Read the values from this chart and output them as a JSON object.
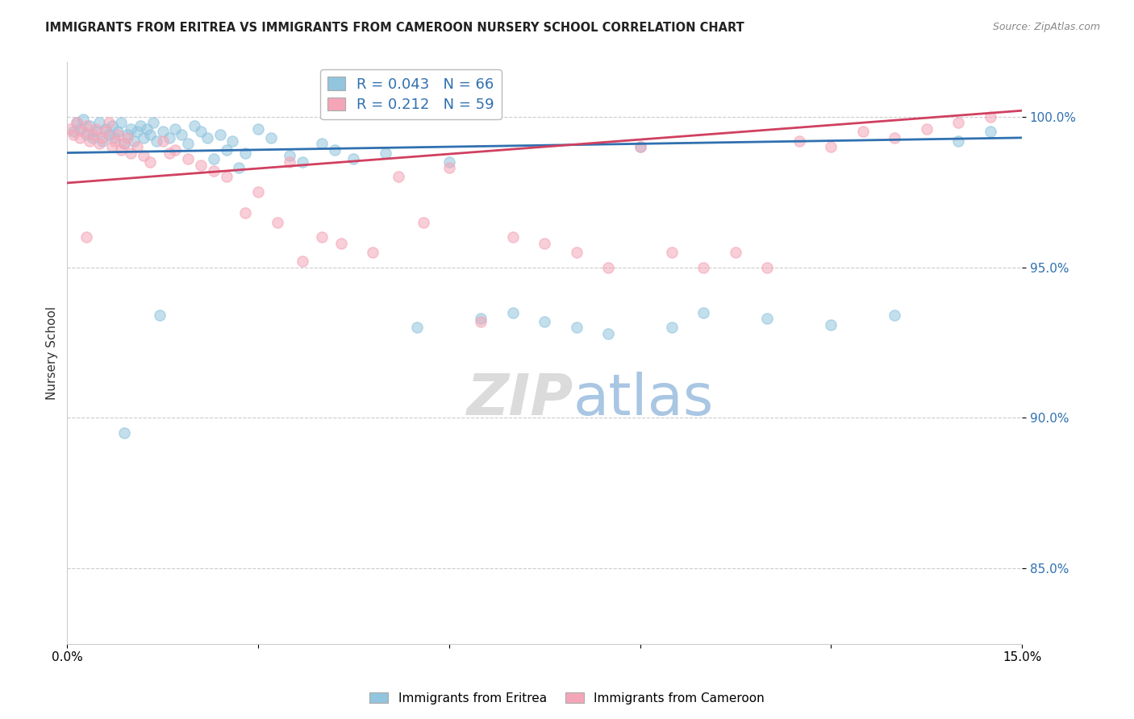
{
  "title": "IMMIGRANTS FROM ERITREA VS IMMIGRANTS FROM CAMEROON NURSERY SCHOOL CORRELATION CHART",
  "source": "Source: ZipAtlas.com",
  "ylabel": "Nursery School",
  "xlim": [
    0.0,
    15.0
  ],
  "ylim": [
    82.5,
    101.8
  ],
  "yticks": [
    85.0,
    90.0,
    95.0,
    100.0
  ],
  "xtick_positions": [
    0.0,
    3.0,
    6.0,
    9.0,
    12.0,
    15.0
  ],
  "xtick_labels": [
    "0.0%",
    "",
    "",
    "",
    "",
    "15.0%"
  ],
  "ytick_labels": [
    "85.0%",
    "90.0%",
    "95.0%",
    "100.0%"
  ],
  "legend_eritrea": "Immigrants from Eritrea",
  "legend_cameroon": "Immigrants from Cameroon",
  "R_eritrea": 0.043,
  "N_eritrea": 66,
  "R_cameroon": 0.212,
  "N_cameroon": 59,
  "color_eritrea": "#92c5de",
  "color_cameroon": "#f4a6b8",
  "line_color_eritrea": "#3070b0",
  "line_color_cameroon": "#d04060",
  "trendline_eritrea": [
    0.0,
    15.0,
    98.8,
    99.3
  ],
  "trendline_cameroon": [
    0.0,
    15.0,
    97.8,
    100.2
  ],
  "eritrea_x": [
    0.1,
    0.15,
    0.2,
    0.25,
    0.3,
    0.35,
    0.4,
    0.45,
    0.5,
    0.55,
    0.6,
    0.65,
    0.7,
    0.75,
    0.8,
    0.85,
    0.9,
    0.95,
    1.0,
    1.05,
    1.1,
    1.15,
    1.2,
    1.25,
    1.3,
    1.35,
    1.4,
    1.5,
    1.6,
    1.7,
    1.8,
    1.9,
    2.0,
    2.1,
    2.2,
    2.4,
    2.5,
    2.6,
    2.8,
    3.0,
    3.2,
    3.5,
    3.7,
    4.0,
    4.2,
    4.5,
    5.0,
    5.5,
    6.0,
    6.5,
    7.0,
    7.5,
    8.0,
    8.5,
    9.0,
    9.5,
    10.0,
    11.0,
    12.0,
    13.0,
    14.0,
    14.5,
    2.3,
    2.7,
    1.45,
    0.9
  ],
  "eritrea_y": [
    99.5,
    99.8,
    99.6,
    99.9,
    99.4,
    99.7,
    99.3,
    99.5,
    99.8,
    99.2,
    99.6,
    99.4,
    99.7,
    99.3,
    99.5,
    99.8,
    99.1,
    99.4,
    99.6,
    99.2,
    99.5,
    99.7,
    99.3,
    99.6,
    99.4,
    99.8,
    99.2,
    99.5,
    99.3,
    99.6,
    99.4,
    99.1,
    99.7,
    99.5,
    99.3,
    99.4,
    98.9,
    99.2,
    98.8,
    99.6,
    99.3,
    98.7,
    98.5,
    99.1,
    98.9,
    98.6,
    98.8,
    93.0,
    98.5,
    93.3,
    93.5,
    93.2,
    93.0,
    92.8,
    99.0,
    93.0,
    93.5,
    93.3,
    93.1,
    93.4,
    99.2,
    99.5,
    98.6,
    98.3,
    93.4,
    89.5
  ],
  "cameroon_x": [
    0.05,
    0.1,
    0.15,
    0.2,
    0.25,
    0.3,
    0.35,
    0.4,
    0.45,
    0.5,
    0.55,
    0.6,
    0.65,
    0.7,
    0.75,
    0.8,
    0.85,
    0.9,
    0.95,
    1.0,
    1.1,
    1.2,
    1.3,
    1.5,
    1.7,
    1.9,
    2.1,
    2.3,
    2.5,
    2.8,
    3.0,
    3.3,
    3.7,
    4.0,
    4.3,
    4.8,
    5.2,
    5.6,
    6.0,
    6.5,
    7.0,
    7.5,
    8.0,
    8.5,
    9.0,
    9.5,
    10.0,
    10.5,
    11.0,
    11.5,
    12.0,
    12.5,
    13.0,
    13.5,
    14.0,
    14.5,
    1.6,
    3.5,
    0.3
  ],
  "cameroon_y": [
    99.6,
    99.4,
    99.8,
    99.3,
    99.5,
    99.7,
    99.2,
    99.4,
    99.6,
    99.1,
    99.3,
    99.5,
    99.8,
    99.0,
    99.2,
    99.4,
    98.9,
    99.1,
    99.3,
    98.8,
    99.0,
    98.7,
    98.5,
    99.2,
    98.9,
    98.6,
    98.4,
    98.2,
    98.0,
    96.8,
    97.5,
    96.5,
    95.2,
    96.0,
    95.8,
    95.5,
    98.0,
    96.5,
    98.3,
    93.2,
    96.0,
    95.8,
    95.5,
    95.0,
    99.0,
    95.5,
    95.0,
    95.5,
    95.0,
    99.2,
    99.0,
    99.5,
    99.3,
    99.6,
    99.8,
    100.0,
    98.8,
    98.5,
    96.0
  ]
}
